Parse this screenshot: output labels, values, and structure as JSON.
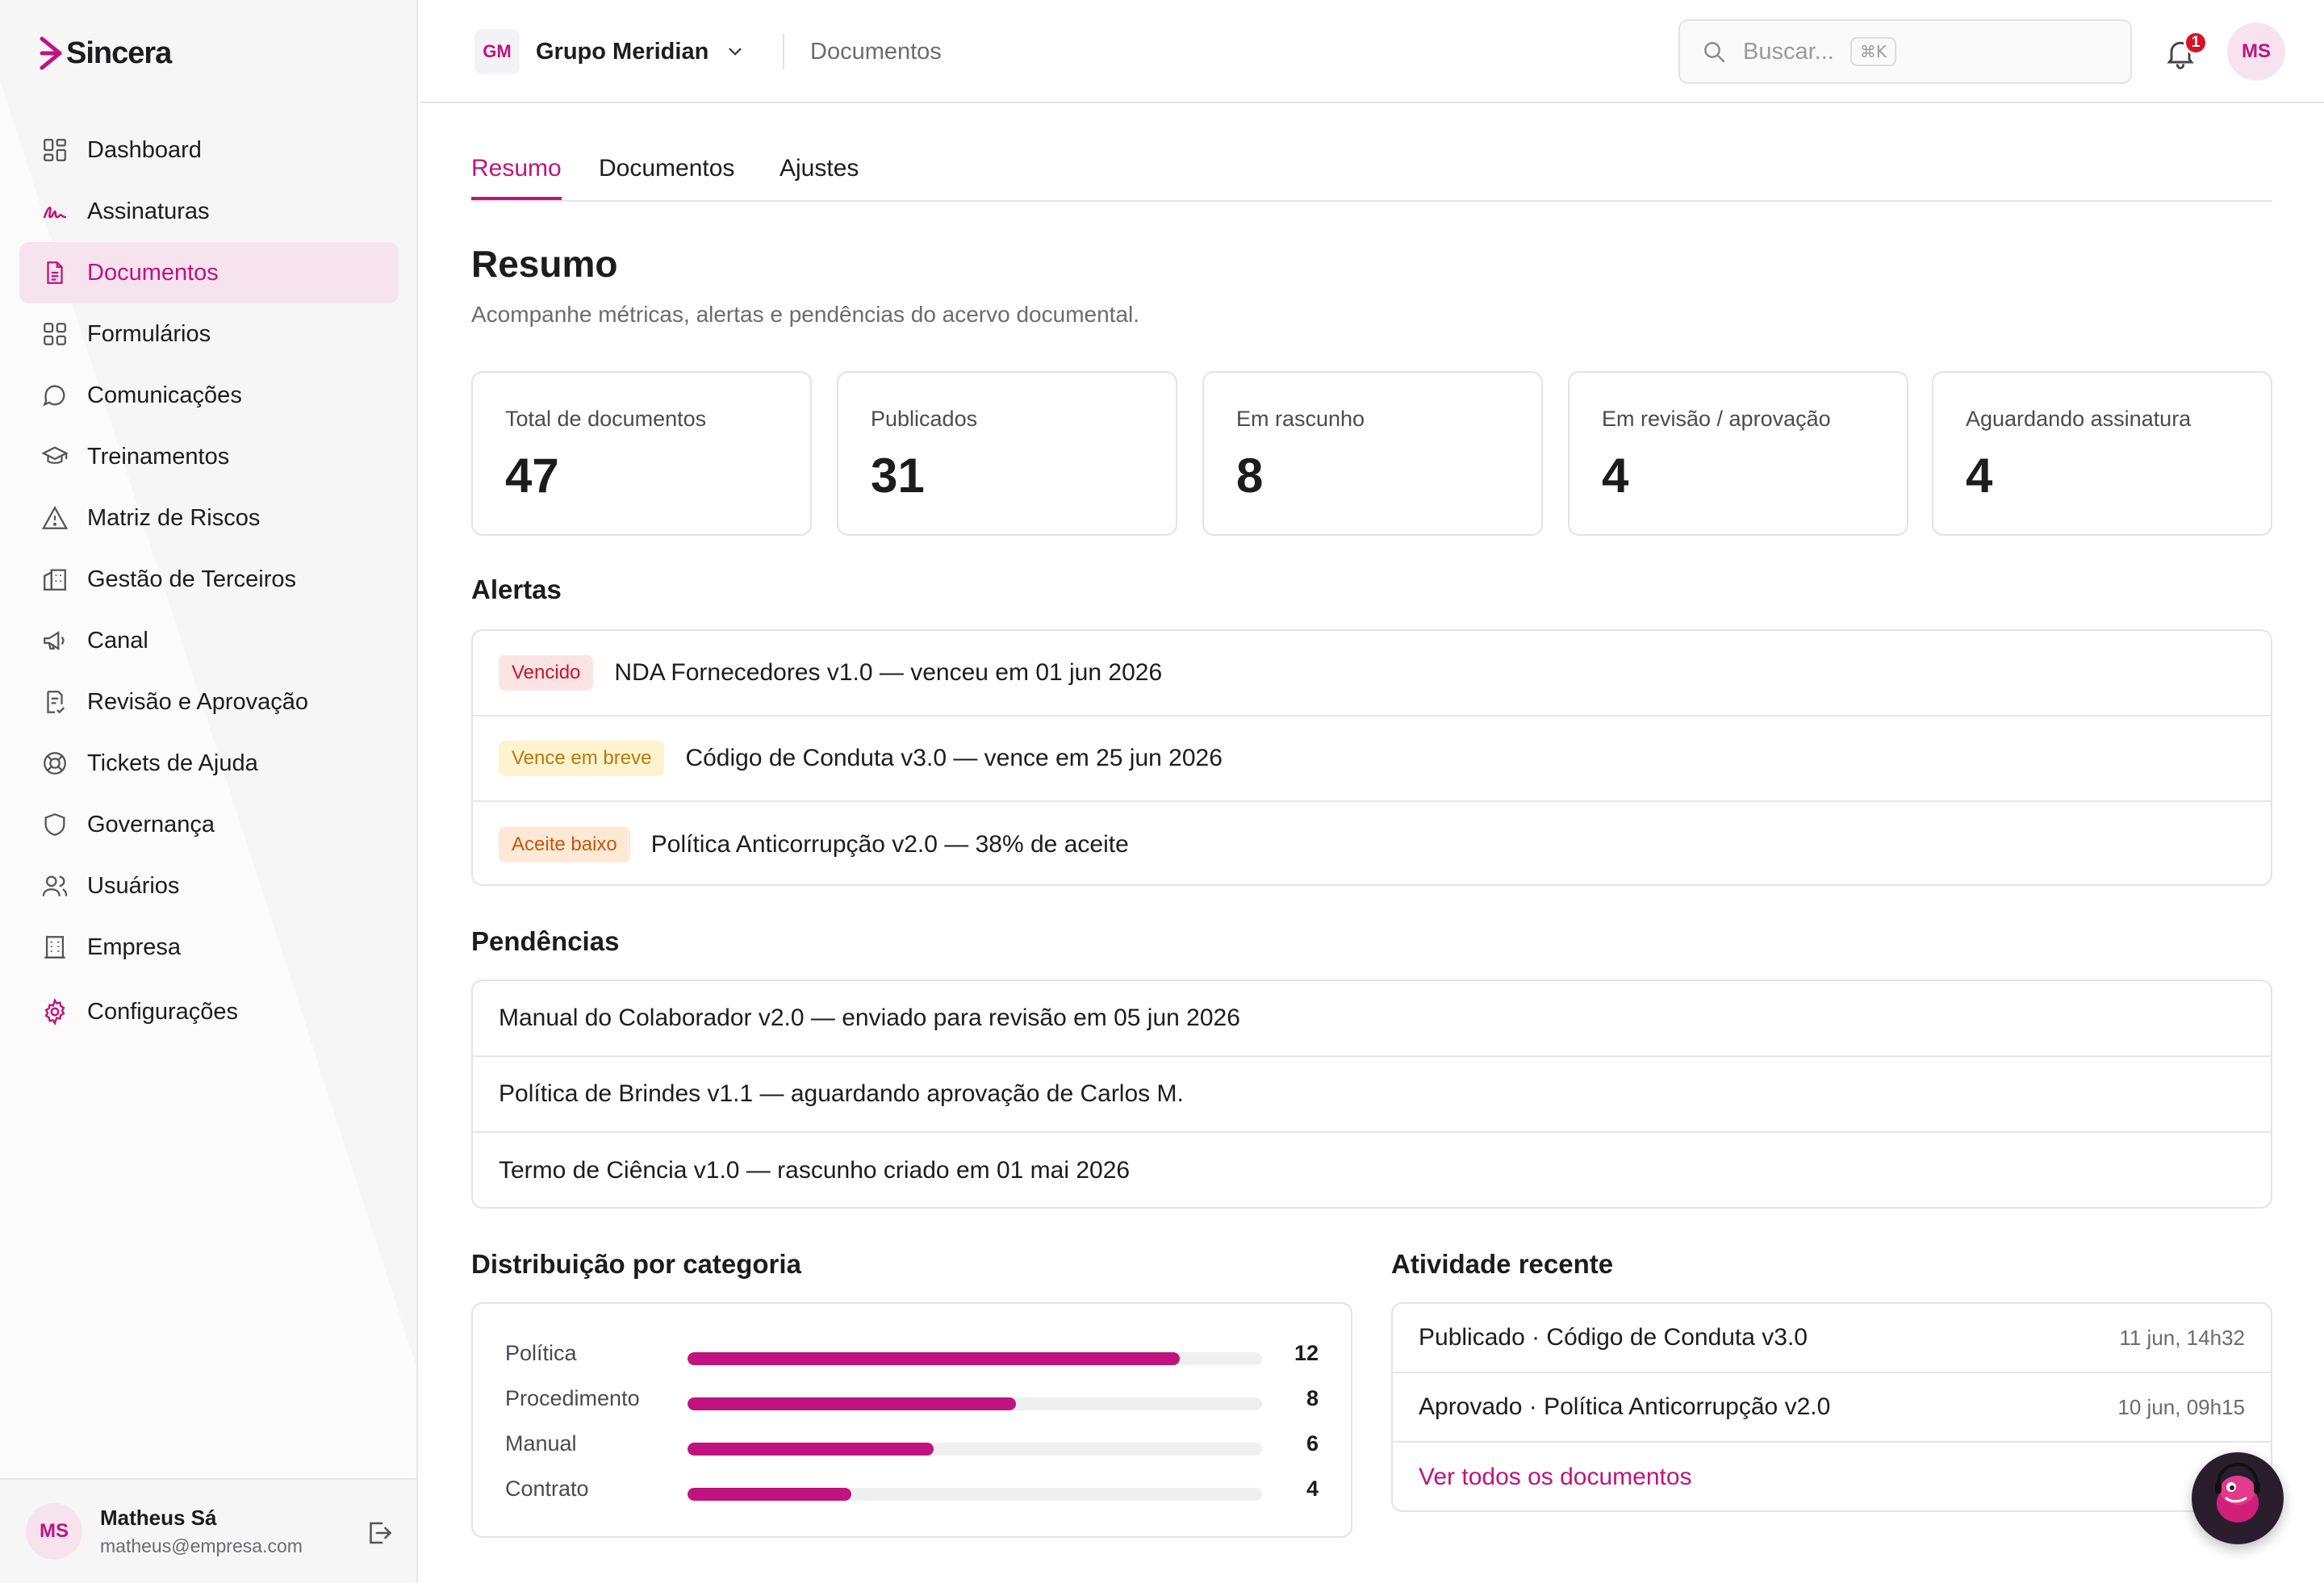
{
  "brand": {
    "name": "Sincera"
  },
  "sidebar": {
    "items": [
      {
        "label": "Dashboard",
        "icon": "grid-icon"
      },
      {
        "label": "Assinaturas",
        "icon": "signature-icon"
      },
      {
        "label": "Documentos",
        "icon": "document-icon",
        "active": true
      },
      {
        "label": "Formulários",
        "icon": "form-grid-icon"
      },
      {
        "label": "Comunicações",
        "icon": "chat-bubble-icon"
      },
      {
        "label": "Treinamentos",
        "icon": "graduation-cap-icon"
      },
      {
        "label": "Matriz de Riscos",
        "icon": "warning-triangle-icon"
      },
      {
        "label": "Gestão de Terceiros",
        "icon": "building-icon"
      },
      {
        "label": "Canal",
        "icon": "megaphone-icon"
      },
      {
        "label": "Revisão e Aprovação",
        "icon": "review-doc-icon"
      },
      {
        "label": "Tickets de Ajuda",
        "icon": "lifebuoy-icon"
      },
      {
        "label": "Governança",
        "icon": "shield-icon"
      },
      {
        "label": "Usuários",
        "icon": "users-icon"
      },
      {
        "label": "Empresa",
        "icon": "office-building-icon"
      },
      {
        "label": "Configurações",
        "icon": "gear-icon"
      }
    ],
    "user": {
      "initials": "MS",
      "name": "Matheus Sá",
      "email": "matheus@empresa.com"
    }
  },
  "topbar": {
    "org_initials": "GM",
    "org_name": "Grupo Meridian",
    "breadcrumb": "Documentos",
    "search_placeholder": "Buscar...",
    "search_shortcut": "⌘K",
    "notifications_count": "1",
    "avatar_initials": "MS"
  },
  "tabs": [
    {
      "label": "Resumo",
      "active": true
    },
    {
      "label": "Documentos"
    },
    {
      "label": "Ajustes"
    }
  ],
  "page": {
    "title": "Resumo",
    "subtitle": "Acompanhe métricas, alertas e pendências do acervo documental."
  },
  "stats": [
    {
      "label": "Total de documentos",
      "value": "47"
    },
    {
      "label": "Publicados",
      "value": "31"
    },
    {
      "label": "Em rascunho",
      "value": "8"
    },
    {
      "label": "Em revisão / aprovação",
      "value": "4"
    },
    {
      "label": "Aguardando assinatura",
      "value": "4"
    }
  ],
  "alerts": {
    "title": "Alertas",
    "items": [
      {
        "tag": "Vencido",
        "tag_color": "#c5162b",
        "text": "NDA Fornecedores v1.0 — venceu em 01 jun 2026"
      },
      {
        "tag": "Vence em breve",
        "tag_color": "#b7790a",
        "text": "Código de Conduta v3.0 — vence em 25 jun 2026"
      },
      {
        "tag": "Aceite baixo",
        "tag_color": "#c2580a",
        "text": "Política Anticorrupção v2.0 — 38% de aceite"
      }
    ]
  },
  "pendencias": {
    "title": "Pendências",
    "items": [
      "Manual do Colaborador v2.0 — enviado para revisão em 05 jun 2026",
      "Política de Brindes v1.1 — aguardando aprovação de Carlos M.",
      "Termo de Ciência v1.0 — rascunho criado em 01 mai 2026"
    ]
  },
  "distribution": {
    "title": "Distribuição por categoria",
    "max": 14,
    "items": [
      {
        "label": "Política",
        "value": 12
      },
      {
        "label": "Procedimento",
        "value": 8
      },
      {
        "label": "Manual",
        "value": 6
      },
      {
        "label": "Contrato",
        "value": 4
      }
    ]
  },
  "activity": {
    "title": "Atividade recente",
    "items": [
      {
        "text": "Publicado · Código de Conduta v3.0",
        "time": "11 jun, 14h32"
      },
      {
        "text": "Aprovado · Política Anticorrupção v2.0",
        "time": "10 jun, 09h15"
      }
    ],
    "link": "Ver todos os documentos"
  },
  "colors": {
    "accent": "#c0137f",
    "accent_soft": "#f7e3ee",
    "border": "#e3e3e7"
  }
}
